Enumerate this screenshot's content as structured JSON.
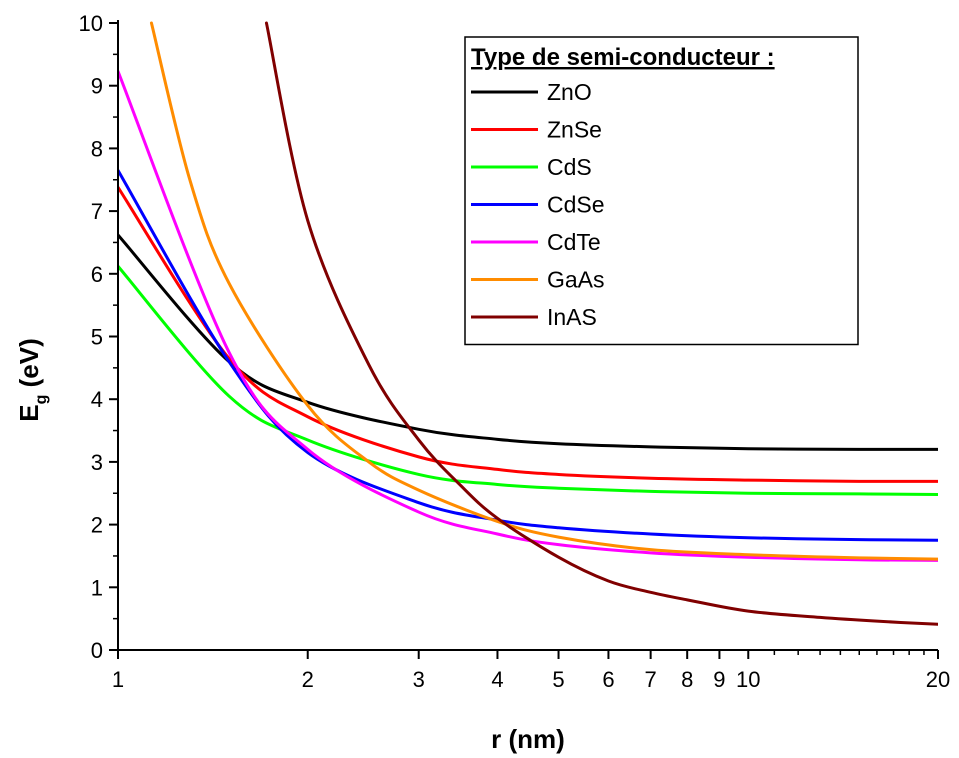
{
  "chart_data": {
    "type": "line",
    "xlabel": "r (nm)",
    "ylabel_main": "E",
    "ylabel_sub": "g",
    "ylabel_unit": " (eV)",
    "xscale": "log",
    "xlim": [
      1,
      20
    ],
    "ylim": [
      0,
      10
    ],
    "xticks": [
      1,
      2,
      3,
      4,
      5,
      6,
      7,
      8,
      9,
      10,
      20
    ],
    "yticks": [
      0,
      1,
      2,
      3,
      4,
      5,
      6,
      7,
      8,
      9,
      10
    ],
    "legend_title": "Type de semi-conducteur :",
    "legend_position": "top-right",
    "series": [
      {
        "name": "ZnO",
        "color": "#000000",
        "x": [
          1,
          1.5,
          2,
          3,
          4,
          5,
          7,
          10,
          15,
          20
        ],
        "y": [
          6.62,
          4.6,
          3.95,
          3.52,
          3.36,
          3.29,
          3.24,
          3.21,
          3.2,
          3.2
        ]
      },
      {
        "name": "ZnSe",
        "color": "#ff0000",
        "x": [
          1,
          1.5,
          2,
          3,
          4,
          5,
          7,
          10,
          15,
          20
        ],
        "y": [
          7.38,
          4.65,
          3.72,
          3.08,
          2.88,
          2.8,
          2.74,
          2.71,
          2.69,
          2.69
        ]
      },
      {
        "name": "CdS",
        "color": "#00ff00",
        "x": [
          1,
          1.5,
          2,
          3,
          4,
          5,
          7,
          10,
          15,
          20
        ],
        "y": [
          6.12,
          4.05,
          3.35,
          2.8,
          2.64,
          2.58,
          2.53,
          2.5,
          2.49,
          2.48
        ]
      },
      {
        "name": "CdSe",
        "color": "#0000ff",
        "x": [
          1,
          1.5,
          2,
          3,
          4,
          5,
          7,
          10,
          15,
          20
        ],
        "y": [
          7.65,
          4.6,
          3.15,
          2.35,
          2.07,
          1.95,
          1.85,
          1.79,
          1.76,
          1.75
        ]
      },
      {
        "name": "CdTe",
        "color": "#ff00ff",
        "x": [
          1,
          1.5,
          2,
          3,
          4,
          5,
          7,
          10,
          15,
          20
        ],
        "y": [
          9.23,
          4.75,
          3.2,
          2.2,
          1.85,
          1.68,
          1.55,
          1.48,
          1.44,
          1.43
        ]
      },
      {
        "name": "GaAs",
        "color": "#ff8c00",
        "x": [
          1.13,
          1.3,
          1.5,
          2,
          2.5,
          3,
          4,
          5,
          7,
          10,
          15,
          20
        ],
        "y": [
          10,
          7.5,
          5.85,
          3.9,
          3.0,
          2.55,
          2.05,
          1.8,
          1.6,
          1.52,
          1.47,
          1.45
        ]
      },
      {
        "name": "InAS",
        "color": "#800000",
        "x": [
          1.72,
          2,
          2.5,
          3,
          3.5,
          4,
          5,
          6,
          7,
          8,
          10,
          13,
          16,
          20
        ],
        "y": [
          10,
          6.85,
          4.55,
          3.35,
          2.62,
          2.1,
          1.48,
          1.1,
          0.92,
          0.8,
          0.62,
          0.52,
          0.46,
          0.41
        ]
      }
    ]
  }
}
